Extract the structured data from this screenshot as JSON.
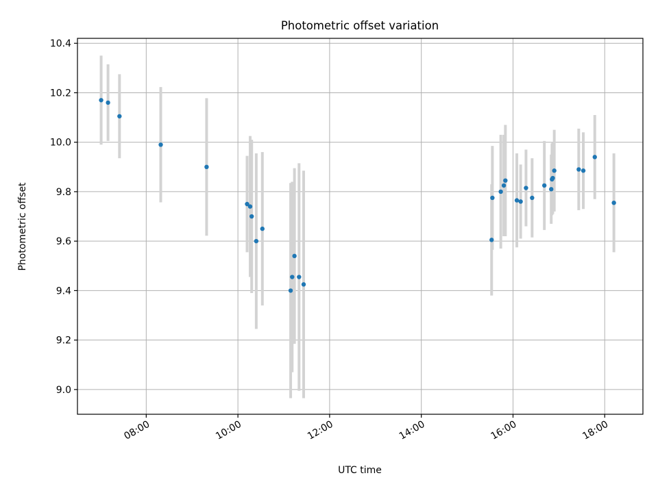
{
  "chart_data": {
    "type": "scatter",
    "title": "Photometric offset variation",
    "xlabel": "UTC time",
    "ylabel": "Photometric offset",
    "x_tick_labels": [
      "08:00",
      "10:00",
      "12:00",
      "14:00",
      "16:00",
      "18:00"
    ],
    "y_tick_labels": [
      "9.0",
      "9.2",
      "9.4",
      "9.6",
      "9.8",
      "10.0",
      "10.2",
      "10.4"
    ],
    "xlim": [
      "06:30",
      "18:50"
    ],
    "ylim": [
      8.9,
      10.42
    ],
    "grid": true,
    "colors": {
      "point": "#1f77b4",
      "errorbar": "#d3d3d3",
      "grid": "#b0b0b0"
    },
    "points": [
      {
        "x": "07:01",
        "y": 10.17,
        "err": 0.18
      },
      {
        "x": "07:10",
        "y": 10.16,
        "err": 0.155
      },
      {
        "x": "07:25",
        "y": 10.105,
        "err": 0.17
      },
      {
        "x": "08:19",
        "y": 9.99,
        "err": 0.233
      },
      {
        "x": "09:19",
        "y": 9.9,
        "err": 0.278
      },
      {
        "x": "10:12",
        "y": 9.75,
        "err": 0.195
      },
      {
        "x": "10:16",
        "y": 9.74,
        "err": 0.285
      },
      {
        "x": "10:18",
        "y": 9.7,
        "err": 0.31
      },
      {
        "x": "10:24",
        "y": 9.6,
        "err": 0.355
      },
      {
        "x": "10:32",
        "y": 9.65,
        "err": 0.31
      },
      {
        "x": "11:09",
        "y": 9.4,
        "err": 0.435
      },
      {
        "x": "11:11",
        "y": 9.455,
        "err": 0.385
      },
      {
        "x": "11:14",
        "y": 9.54,
        "err": 0.355
      },
      {
        "x": "11:20",
        "y": 9.455,
        "err": 0.46
      },
      {
        "x": "11:26",
        "y": 9.425,
        "err": 0.46
      },
      {
        "x": "15:32",
        "y": 9.605,
        "err": 0.225
      },
      {
        "x": "15:33",
        "y": 9.775,
        "err": 0.21
      },
      {
        "x": "15:44",
        "y": 9.8,
        "err": 0.23
      },
      {
        "x": "15:48",
        "y": 9.825,
        "err": 0.205
      },
      {
        "x": "15:50",
        "y": 9.845,
        "err": 0.225
      },
      {
        "x": "16:05",
        "y": 9.765,
        "err": 0.19
      },
      {
        "x": "16:10",
        "y": 9.76,
        "err": 0.15
      },
      {
        "x": "16:17",
        "y": 9.815,
        "err": 0.155
      },
      {
        "x": "16:25",
        "y": 9.775,
        "err": 0.16
      },
      {
        "x": "16:41",
        "y": 9.825,
        "err": 0.18
      },
      {
        "x": "16:50",
        "y": 9.81,
        "err": 0.14
      },
      {
        "x": "16:51",
        "y": 9.85,
        "err": 0.145
      },
      {
        "x": "16:52",
        "y": 9.855,
        "err": 0.145
      },
      {
        "x": "16:54",
        "y": 9.885,
        "err": 0.165
      },
      {
        "x": "17:26",
        "y": 9.89,
        "err": 0.165
      },
      {
        "x": "17:32",
        "y": 9.885,
        "err": 0.155
      },
      {
        "x": "17:47",
        "y": 9.94,
        "err": 0.17
      },
      {
        "x": "18:12",
        "y": 9.755,
        "err": 0.2
      }
    ]
  }
}
